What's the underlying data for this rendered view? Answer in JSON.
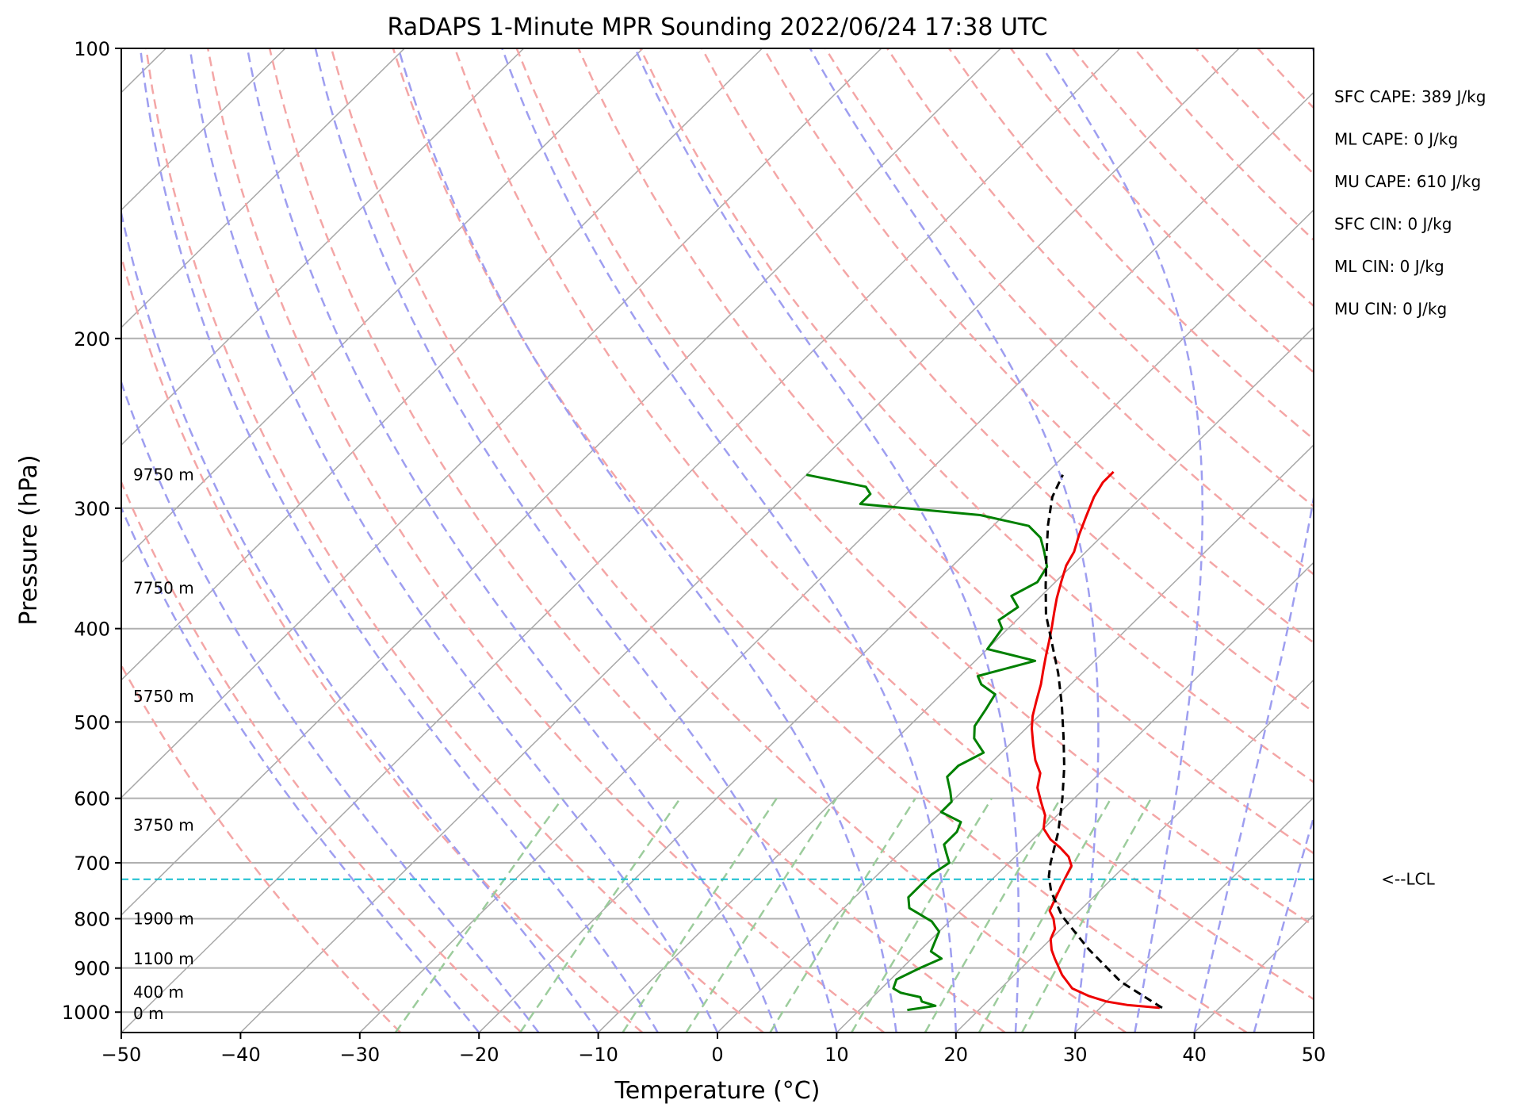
{
  "chart_data": {
    "type": "line",
    "title": "RaDAPS 1-Minute MPR Sounding 2022/06/24 17:38 UTC",
    "xlabel": "Temperature (°C)",
    "ylabel": "Pressure (hPa)",
    "xlim": [
      -50,
      50
    ],
    "ylim": [
      1050,
      100
    ],
    "y_scale": "log",
    "skew": true,
    "grid": true,
    "x_ticks": [
      "-50",
      "-40",
      "-30",
      "-20",
      "-10",
      "0",
      "10",
      "20",
      "30",
      "40",
      "50"
    ],
    "y_ticks": [
      "100",
      "200",
      "300",
      "400",
      "500",
      "600",
      "700",
      "800",
      "900",
      "1000"
    ],
    "series": [
      {
        "color": "#ee0000",
        "points": [
          [
            35,
            990
          ],
          [
            32,
            983
          ],
          [
            30,
            975
          ],
          [
            28,
            962
          ],
          [
            26,
            945
          ],
          [
            24,
            915
          ],
          [
            22,
            880
          ],
          [
            21,
            862
          ],
          [
            20,
            840
          ],
          [
            19.5,
            820
          ],
          [
            18.5,
            800
          ],
          [
            17.5,
            785
          ],
          [
            17,
            765
          ],
          [
            16.5,
            745
          ],
          [
            16,
            725
          ],
          [
            15.5,
            705
          ],
          [
            14.5,
            690
          ],
          [
            13,
            675
          ],
          [
            11.5,
            662
          ],
          [
            10,
            645
          ],
          [
            9,
            625
          ],
          [
            7.5,
            605
          ],
          [
            6,
            585
          ],
          [
            5,
            565
          ],
          [
            3.5,
            548
          ],
          [
            2,
            528
          ],
          [
            0.5,
            508
          ],
          [
            -0.5,
            493
          ],
          [
            -1.5,
            475
          ],
          [
            -2.5,
            457
          ],
          [
            -3.5,
            442
          ],
          [
            -4.5,
            427
          ],
          [
            -5.5,
            412
          ],
          [
            -6.5,
            398
          ],
          [
            -7.5,
            385
          ],
          [
            -8.5,
            372
          ],
          [
            -9.5,
            358
          ],
          [
            -10.5,
            344
          ],
          [
            -11,
            333
          ],
          [
            -12,
            320
          ],
          [
            -13,
            306
          ],
          [
            -14,
            292
          ],
          [
            -14.5,
            282
          ],
          [
            -14.5,
            275
          ]
        ]
      },
      {
        "color": "#008000",
        "points": [
          [
            14,
            995
          ],
          [
            16,
            985
          ],
          [
            14.5,
            975
          ],
          [
            14,
            965
          ],
          [
            12,
            955
          ],
          [
            11,
            945
          ],
          [
            10.5,
            925
          ],
          [
            11.5,
            900
          ],
          [
            12.5,
            880
          ],
          [
            11,
            865
          ],
          [
            10.5,
            845
          ],
          [
            10,
            825
          ],
          [
            8.5,
            805
          ],
          [
            5.5,
            780
          ],
          [
            4.5,
            760
          ],
          [
            4.5,
            740
          ],
          [
            4.5,
            720
          ],
          [
            5,
            700
          ],
          [
            4,
            685
          ],
          [
            3,
            670
          ],
          [
            3,
            650
          ],
          [
            2.5,
            635
          ],
          [
            0,
            620
          ],
          [
            0,
            605
          ],
          [
            -1,
            590
          ],
          [
            -2.5,
            570
          ],
          [
            -2.5,
            555
          ],
          [
            -1.5,
            538
          ],
          [
            -3.5,
            520
          ],
          [
            -4.5,
            505
          ],
          [
            -5,
            485
          ],
          [
            -5.5,
            468
          ],
          [
            -7.5,
            457
          ],
          [
            -8.5,
            448
          ],
          [
            -5,
            432
          ],
          [
            -10,
            420
          ],
          [
            -10.5,
            400
          ],
          [
            -11.5,
            392
          ],
          [
            -11,
            380
          ],
          [
            -12.5,
            370
          ],
          [
            -11.5,
            358
          ],
          [
            -12,
            345
          ],
          [
            -13.5,
            333
          ],
          [
            -15,
            322
          ],
          [
            -17,
            313
          ],
          [
            -22,
            305
          ],
          [
            -33,
            297
          ],
          [
            -33,
            290
          ],
          [
            -34,
            285
          ],
          [
            -40,
            277
          ]
        ]
      },
      {
        "color": "#000000",
        "points": [
          [
            35.2,
            990
          ],
          [
            29.5,
            930
          ],
          [
            24,
            860
          ],
          [
            19,
            795
          ],
          [
            16,
            750
          ],
          [
            14.5,
            723
          ],
          [
            13.5,
            700
          ],
          [
            11.5,
            650
          ],
          [
            9,
            600
          ],
          [
            6.5,
            557
          ],
          [
            4,
            520
          ],
          [
            1,
            480
          ],
          [
            -2,
            445
          ],
          [
            -5,
            415
          ],
          [
            -8,
            387
          ],
          [
            -10.5,
            361
          ],
          [
            -13,
            336
          ],
          [
            -15.5,
            312
          ],
          [
            -17.5,
            292
          ],
          [
            -18.5,
            277
          ]
        ]
      }
    ],
    "lcl": {
      "label": "<--LCL",
      "pressure": 728
    },
    "height_labels": [
      {
        "label": "9750 m",
        "pressure": 277
      },
      {
        "label": "7750 m",
        "pressure": 363
      },
      {
        "label": "5750 m",
        "pressure": 470
      },
      {
        "label": "3750 m",
        "pressure": 640
      },
      {
        "label": "1900 m",
        "pressure": 800
      },
      {
        "label": "1100 m",
        "pressure": 880
      },
      {
        "label": "400 m",
        "pressure": 953
      },
      {
        "label": "0 m",
        "pressure": 1003
      }
    ],
    "indices": [
      "SFC CAPE: 389 J/kg",
      "ML CAPE: 0 J/kg",
      "MU CAPE: 610 J/kg",
      "SFC CIN: 0 J/kg",
      "ML CIN: 0 J/kg",
      "MU CIN: 0 J/kg"
    ],
    "colors": {
      "isobar": "#b0b0b0",
      "isotherm": "#a8a8a8",
      "dry_adiabat": "#f4a6a6",
      "moist_adiabat": "#9e9ef0",
      "mixing_ratio": "#9ccc9c",
      "lcl": "#17becf"
    }
  }
}
